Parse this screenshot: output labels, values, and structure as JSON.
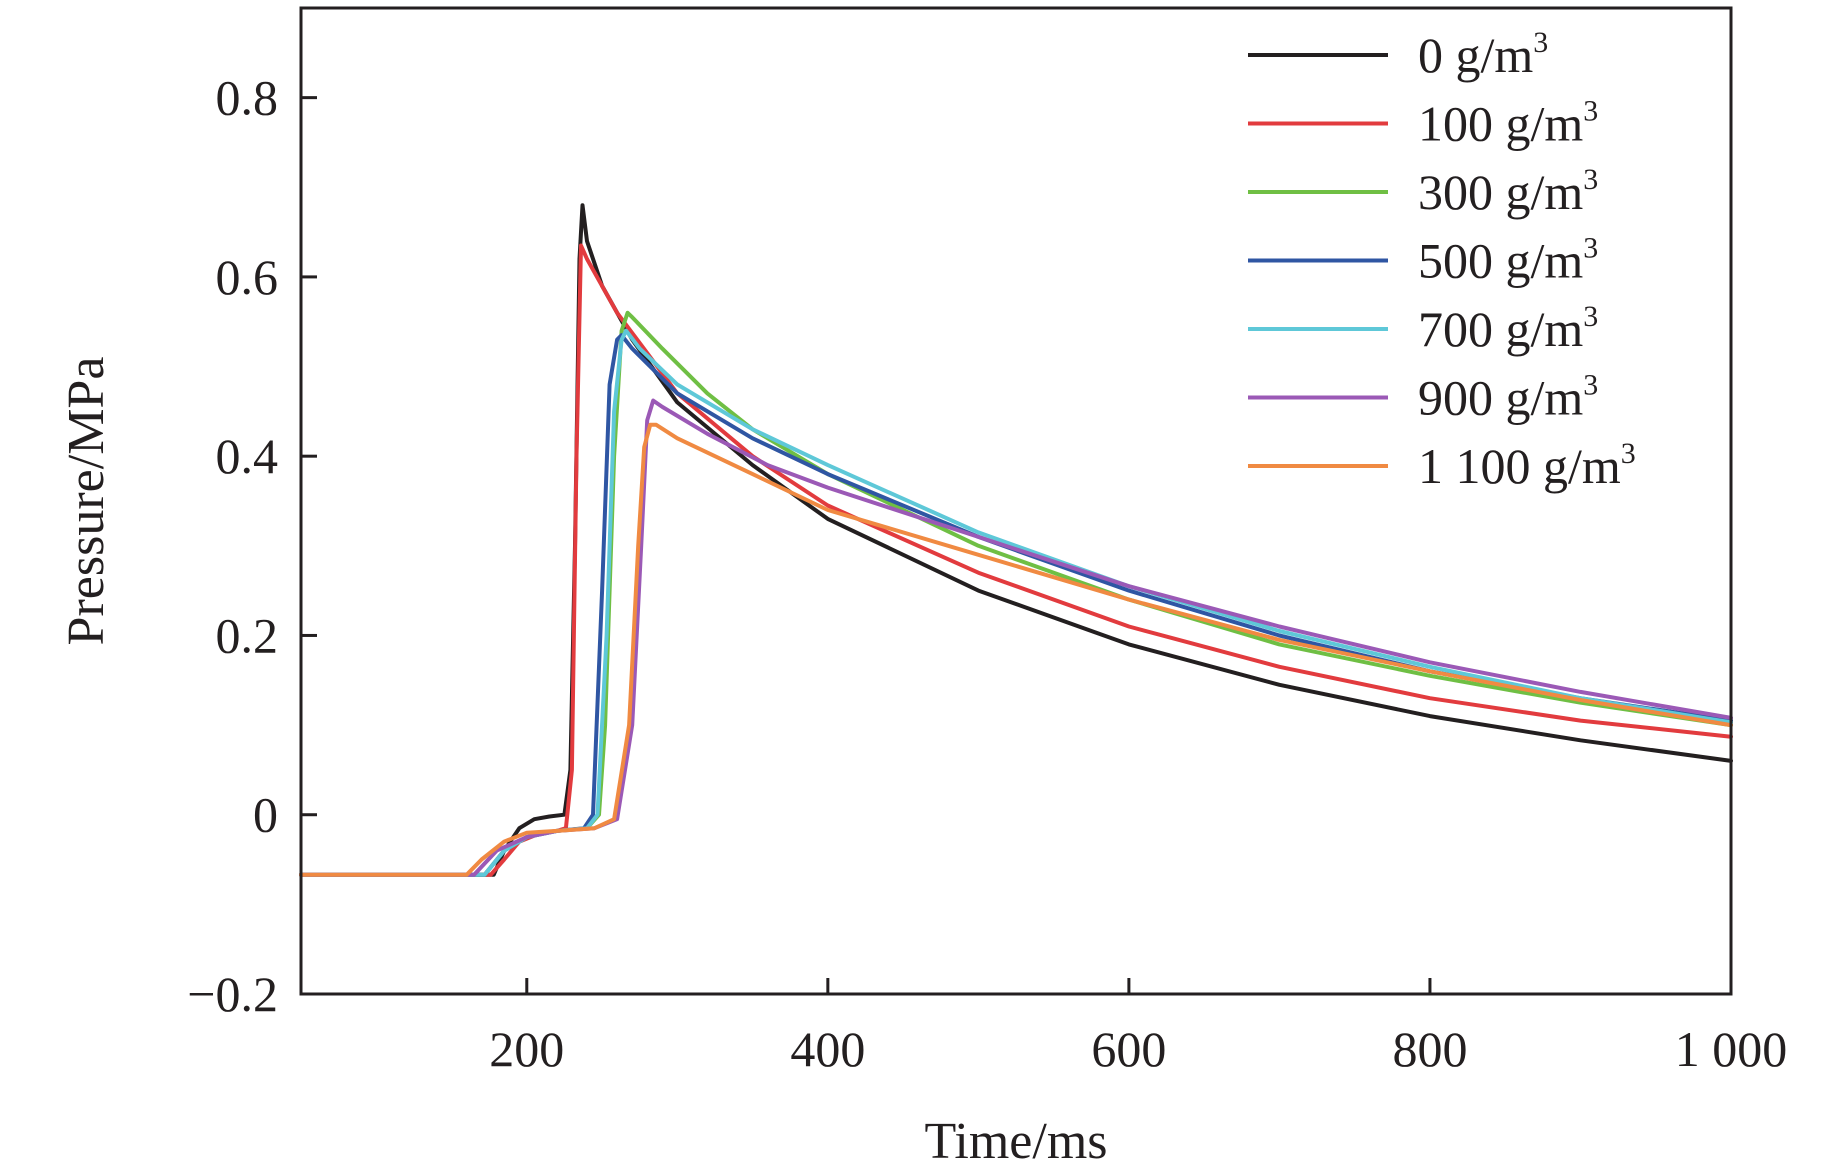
{
  "chart_data": {
    "type": "line",
    "xlabel": "Time/ms",
    "ylabel": "Pressure/MPa",
    "xlim": [
      50,
      1000
    ],
    "ylim": [
      -0.2,
      0.9
    ],
    "xticks": [
      {
        "value": 200,
        "label": "200"
      },
      {
        "value": 400,
        "label": "400"
      },
      {
        "value": 600,
        "label": "600"
      },
      {
        "value": 800,
        "label": "800"
      },
      {
        "value": 1000,
        "label": "1 000"
      }
    ],
    "yticks": [
      {
        "value": -0.2,
        "label": "−0.2"
      },
      {
        "value": 0,
        "label": "0"
      },
      {
        "value": 0.2,
        "label": "0.2"
      },
      {
        "value": 0.4,
        "label": "0.4"
      },
      {
        "value": 0.6,
        "label": "0.6"
      },
      {
        "value": 0.8,
        "label": "0.8"
      }
    ],
    "grid": false,
    "legend_position": "top-right",
    "series": [
      {
        "name": "0 g/m³",
        "label_main": "0 g/m",
        "label_sup": "3",
        "color": "#231f20",
        "x": [
          50,
          130,
          178,
          185,
          195,
          205,
          215,
          225,
          229,
          232,
          235,
          237,
          240,
          250,
          270,
          300,
          350,
          400,
          500,
          600,
          700,
          800,
          900,
          1000
        ],
        "y": [
          -0.067,
          -0.067,
          -0.067,
          -0.04,
          -0.015,
          -0.005,
          -0.002,
          0.0,
          0.05,
          0.3,
          0.62,
          0.68,
          0.64,
          0.59,
          0.53,
          0.46,
          0.39,
          0.33,
          0.25,
          0.19,
          0.145,
          0.11,
          0.083,
          0.06
        ]
      },
      {
        "name": "100 g/m³",
        "label_main": "100 g/m",
        "label_sup": "3",
        "color": "#e23b3e",
        "x": [
          50,
          130,
          176,
          185,
          195,
          210,
          220,
          226,
          230,
          233,
          236,
          240,
          260,
          300,
          350,
          400,
          500,
          600,
          700,
          800,
          900,
          1000
        ],
        "y": [
          -0.067,
          -0.067,
          -0.067,
          -0.05,
          -0.03,
          -0.02,
          -0.018,
          -0.015,
          0.05,
          0.4,
          0.635,
          0.62,
          0.56,
          0.47,
          0.4,
          0.345,
          0.27,
          0.21,
          0.165,
          0.13,
          0.105,
          0.087
        ]
      },
      {
        "name": "300 g/m³",
        "label_main": "300 g/m",
        "label_sup": "3",
        "color": "#6fbf44",
        "x": [
          50,
          130,
          172,
          185,
          200,
          220,
          240,
          248,
          252,
          258,
          263,
          267,
          270,
          290,
          320,
          350,
          400,
          500,
          600,
          700,
          800,
          900,
          1000
        ],
        "y": [
          -0.067,
          -0.067,
          -0.067,
          -0.04,
          -0.025,
          -0.018,
          -0.015,
          0.0,
          0.1,
          0.4,
          0.54,
          0.56,
          0.555,
          0.52,
          0.47,
          0.43,
          0.38,
          0.3,
          0.24,
          0.19,
          0.155,
          0.125,
          0.1
        ]
      },
      {
        "name": "500 g/m³",
        "label_main": "500 g/m",
        "label_sup": "3",
        "color": "#2f56a3",
        "x": [
          50,
          130,
          172,
          185,
          200,
          220,
          238,
          244,
          250,
          255,
          260,
          263,
          270,
          300,
          350,
          400,
          500,
          600,
          700,
          800,
          900,
          1000
        ],
        "y": [
          -0.067,
          -0.067,
          -0.067,
          -0.04,
          -0.025,
          -0.018,
          -0.015,
          0.0,
          0.25,
          0.48,
          0.53,
          0.535,
          0.52,
          0.47,
          0.42,
          0.38,
          0.31,
          0.25,
          0.2,
          0.16,
          0.13,
          0.105
        ]
      },
      {
        "name": "700 g/m³",
        "label_main": "700 g/m",
        "label_sup": "3",
        "color": "#5ec8d8",
        "x": [
          50,
          130,
          172,
          185,
          200,
          220,
          240,
          247,
          253,
          258,
          263,
          266,
          275,
          300,
          350,
          400,
          500,
          600,
          700,
          800,
          900,
          1000
        ],
        "y": [
          -0.067,
          -0.067,
          -0.067,
          -0.04,
          -0.025,
          -0.018,
          -0.015,
          0.0,
          0.2,
          0.45,
          0.53,
          0.54,
          0.52,
          0.48,
          0.43,
          0.39,
          0.315,
          0.255,
          0.205,
          0.165,
          0.13,
          0.103
        ]
      },
      {
        "name": "900 g/m³",
        "label_main": "900 g/m",
        "label_sup": "3",
        "color": "#9b59b6",
        "x": [
          50,
          130,
          165,
          180,
          200,
          220,
          245,
          260,
          270,
          276,
          280,
          284,
          290,
          320,
          360,
          400,
          500,
          600,
          700,
          800,
          900,
          1000
        ],
        "y": [
          -0.067,
          -0.067,
          -0.067,
          -0.04,
          -0.025,
          -0.018,
          -0.015,
          -0.005,
          0.1,
          0.3,
          0.44,
          0.462,
          0.455,
          0.425,
          0.39,
          0.365,
          0.31,
          0.255,
          0.21,
          0.17,
          0.137,
          0.108
        ]
      },
      {
        "name": "1 100 g/m³",
        "label_main": "1 100 g/m",
        "label_sup": "3",
        "color": "#f08a42",
        "x": [
          50,
          130,
          160,
          170,
          185,
          200,
          220,
          245,
          258,
          268,
          274,
          278,
          282,
          286,
          300,
          350,
          400,
          500,
          600,
          700,
          800,
          900,
          1000
        ],
        "y": [
          -0.067,
          -0.067,
          -0.067,
          -0.05,
          -0.03,
          -0.02,
          -0.018,
          -0.015,
          -0.005,
          0.1,
          0.3,
          0.41,
          0.435,
          0.435,
          0.42,
          0.38,
          0.34,
          0.29,
          0.24,
          0.195,
          0.16,
          0.128,
          0.1
        ]
      }
    ]
  }
}
